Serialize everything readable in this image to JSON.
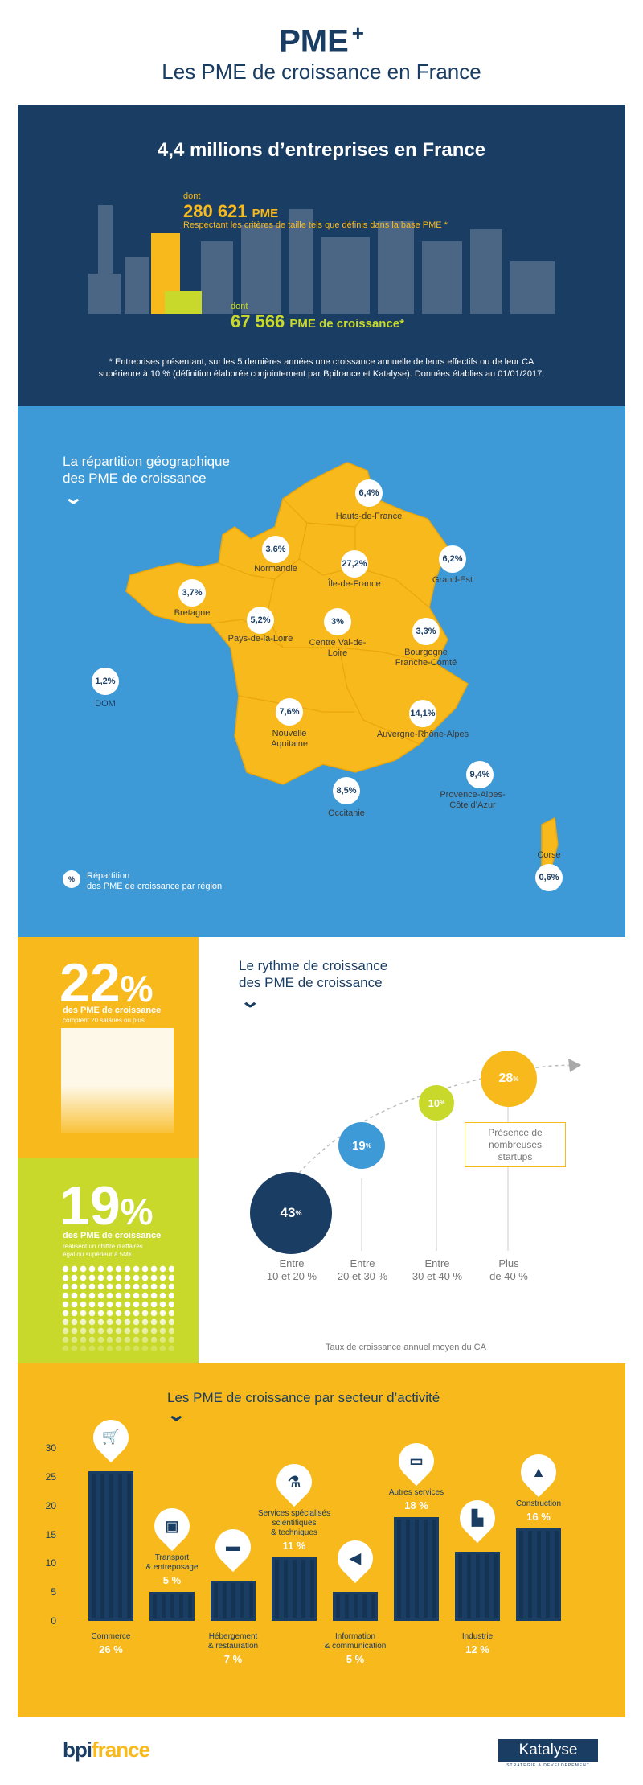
{
  "header": {
    "title": "PME",
    "plus": "+",
    "subtitle": "Les PME de croissance en France"
  },
  "overview": {
    "title": "4,4 millions d’entreprises en France",
    "pme_dont": "dont",
    "pme_value": "280 621",
    "pme_unit": "PME",
    "pme_desc": "Respectant les critères de taille tels que définis dans la base PME *",
    "growth_dont": "dont",
    "growth_value": "67 566",
    "growth_unit": "PME de croissance*",
    "footnote_line1": "* Entreprises présentant, sur les 5 dernières années une croissance annuelle de leurs effectifs ou de leur CA",
    "footnote_line2": "supérieure à 10 % (définition élaborée conjointement par Bpifrance et Katalyse). Données établies au 01/01/2017."
  },
  "map": {
    "title_line1": "La répartition géographique",
    "title_line2": "des PME de croissance",
    "legend_symbol": "%",
    "legend_line1": "Répartition",
    "legend_line2": "des PME de croissance par région",
    "regions": [
      {
        "name": "Hauts-de-France",
        "pct": "6,4%"
      },
      {
        "name": "Normandie",
        "pct": "3,6%"
      },
      {
        "name": "Île-de-France",
        "pct": "27,2%"
      },
      {
        "name": "Grand-Est",
        "pct": "6,2%"
      },
      {
        "name": "Bretagne",
        "pct": "3,7%"
      },
      {
        "name": "Pays-de-la-Loire",
        "pct": "5,2%"
      },
      {
        "name": "Centre Val-de-Loire",
        "pct": "3%"
      },
      {
        "name": "Bourgogne Franche-Comté",
        "pct": "3,3%"
      },
      {
        "name": "DOM",
        "pct": "1,2%"
      },
      {
        "name": "Nouvelle Aquitaine",
        "pct": "7,6%"
      },
      {
        "name": "Auvergne-Rhône-Alpes",
        "pct": "14,1%"
      },
      {
        "name": "Occitanie",
        "pct": "8,5%"
      },
      {
        "name": "Provence-Alpes-Côte d’Azur",
        "pct": "9,4%"
      },
      {
        "name": "Corse",
        "pct": "0,6%"
      }
    ]
  },
  "stat_employees": {
    "value": "22",
    "unit": "%",
    "line1": "des PME de croissance",
    "line2": "comptent 20 salariés ou plus"
  },
  "stat_revenue": {
    "value": "19",
    "unit": "%",
    "line1": "des PME de croissance",
    "line2": "réalisent un chiffre d’affaires",
    "line3": "égal ou supérieur à 5M€"
  },
  "rhythm": {
    "title_line1": "Le rythme de croissance",
    "title_line2": "des PME de croissance",
    "startup_note": "Présence de nombreuses startups",
    "axis_label": "Taux de croissance annuel moyen du CA",
    "items": [
      {
        "value": "43",
        "unit": "%",
        "label_line1": "Entre",
        "label_line2": "10 et 20 %",
        "color": "#1a3d63"
      },
      {
        "value": "19",
        "unit": "%",
        "label_line1": "Entre",
        "label_line2": "20 et 30 %",
        "color": "#3d9ad7"
      },
      {
        "value": "10",
        "unit": "%",
        "label_line1": "Entre",
        "label_line2": "30 et 40 %",
        "color": "#c8d92b"
      },
      {
        "value": "28",
        "unit": "%",
        "label_line1": "Plus",
        "label_line2": "de 40 %",
        "color": "#f8b91c"
      }
    ]
  },
  "sectors": {
    "title": "Les PME de croissance par secteur d’activité",
    "value_suffix": "%",
    "labels": [
      {
        "line1": "Commerce",
        "line2": "",
        "line3": ""
      },
      {
        "line1": "Transport",
        "line2": "& entreposage",
        "line3": ""
      },
      {
        "line1": "Hébergement",
        "line2": "& restauration",
        "line3": ""
      },
      {
        "line1": "Services spécialisés",
        "line2": "scientifiques",
        "line3": "& techniques"
      },
      {
        "line1": "Information",
        "line2": "& communication",
        "line3": ""
      },
      {
        "line1": "Autres services",
        "line2": "",
        "line3": ""
      },
      {
        "line1": "Industrie",
        "line2": "",
        "line3": ""
      },
      {
        "line1": "Construction",
        "line2": "",
        "line3": ""
      }
    ],
    "icons": [
      "cart-icon",
      "bus-icon",
      "bed-icon",
      "flask-icon",
      "megaphone-icon",
      "monitor-icon",
      "factory-icon",
      "cone-icon"
    ]
  },
  "chart_data": {
    "type": "bar",
    "title": "Les PME de croissance par secteur d’activité",
    "categories": [
      "Commerce",
      "Transport & entreposage",
      "Hébergement & restauration",
      "Services spécialisés scientifiques & techniques",
      "Information & communication",
      "Autres services",
      "Industrie",
      "Construction"
    ],
    "values": [
      26,
      5,
      7,
      11,
      5,
      18,
      12,
      16
    ],
    "yticks": [
      "0",
      "5",
      "10",
      "15",
      "20",
      "25",
      "30"
    ],
    "ylim": [
      0,
      30
    ]
  },
  "footer": {
    "bpi_left": "bpi",
    "bpi_right": "france",
    "katalyse": "Katalyse",
    "katalyse_sub": "STRATEGIE & DEVELOPPEMENT"
  },
  "colors": {
    "navy": "#1a3d63",
    "blue": "#3d9ad7",
    "yellow": "#f8b91c",
    "lime": "#c8d92b"
  }
}
